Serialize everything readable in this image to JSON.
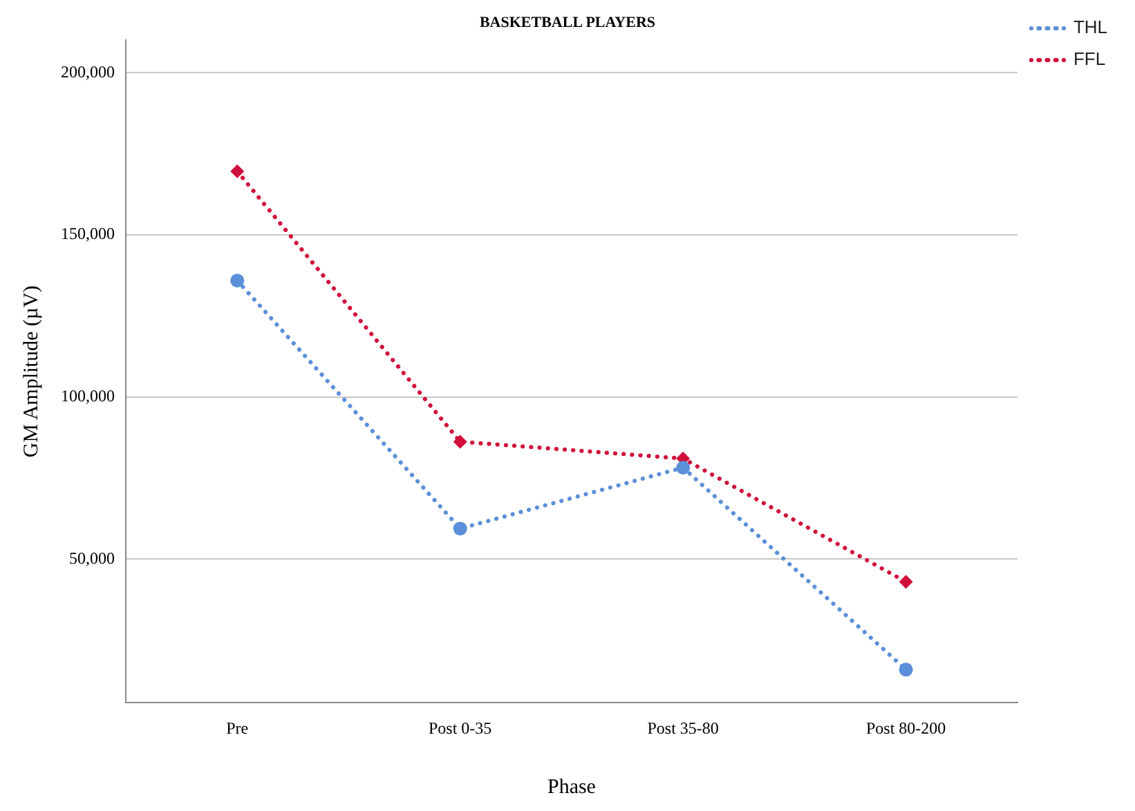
{
  "chart_data": {
    "type": "line",
    "title": "BASKETBALL PLAYERS",
    "xlabel": "Phase",
    "ylabel": "GM Amplitude (µV)",
    "categories": [
      "Pre",
      "Post 0-35",
      "Post 35-80",
      "Post 80-200"
    ],
    "series": [
      {
        "name": "THL",
        "color": "#5b8fd9",
        "marker": "circle",
        "values": [
          135900,
          59400,
          78200,
          15900
        ]
      },
      {
        "name": "FFL",
        "color": "#d0103a",
        "marker": "diamond",
        "values": [
          169600,
          86200,
          81000,
          43000
        ]
      }
    ],
    "ylim": [
      5700,
      210000
    ],
    "yticks": [
      {
        "value": 50000,
        "label": "50,000"
      },
      {
        "value": 100000,
        "label": "100,000"
      },
      {
        "value": 150000,
        "label": "150,000"
      },
      {
        "value": 200000,
        "label": "200,000"
      }
    ],
    "grid": "y",
    "legend": "top right",
    "line_style": "dotted"
  }
}
